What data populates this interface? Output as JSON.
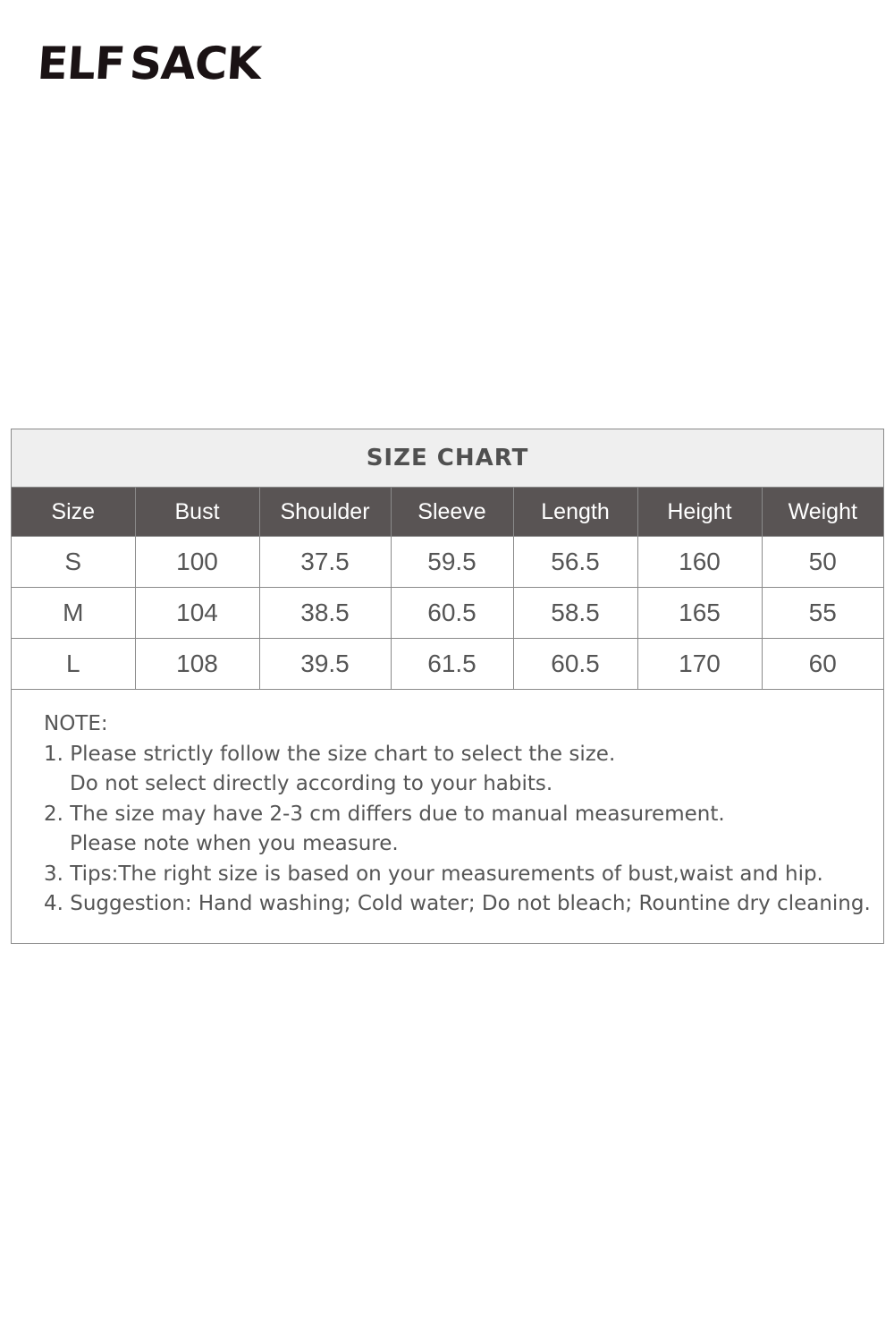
{
  "brand": {
    "logo_text": "ELFSACK"
  },
  "size_chart": {
    "title": "SIZE CHART",
    "columns": [
      "Size",
      "Bust",
      "Shoulder",
      "Sleeve",
      "Length",
      "Height",
      "Weight"
    ],
    "rows": [
      [
        "S",
        "100",
        "37.5",
        "59.5",
        "56.5",
        "160",
        "50"
      ],
      [
        "M",
        "104",
        "38.5",
        "60.5",
        "58.5",
        "165",
        "55"
      ],
      [
        "L",
        "108",
        "39.5",
        "61.5",
        "60.5",
        "170",
        "60"
      ]
    ]
  },
  "notes": {
    "heading": "NOTE:",
    "lines": [
      "1. Please strictly follow the size chart to select the size.",
      "Do not select directly according to your habits.",
      "2. The size may have 2-3 cm differs due to manual measurement.",
      "Please note when you measure.",
      "3. Tips:The right size is based on your measurements of bust,waist and hip.",
      "4. Suggestion: Hand washing; Cold water; Do not bleach; Rountine dry cleaning."
    ]
  }
}
